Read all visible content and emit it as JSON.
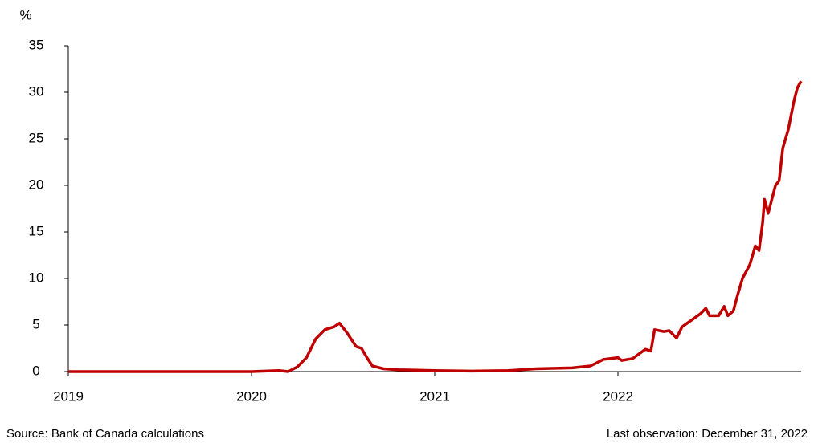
{
  "chart_data": {
    "type": "line",
    "y_unit": "%",
    "source": "Source: Bank of Canada calculations",
    "note": "Last observation: December 31, 2022",
    "xlim": [
      2019,
      2023
    ],
    "xticks": [
      2019,
      2020,
      2021,
      2022
    ],
    "ylim": [
      0,
      35
    ],
    "yticks": [
      0,
      5,
      10,
      15,
      20,
      25,
      30,
      35
    ],
    "grid": false,
    "x": [
      2019.0,
      2020.0,
      2020.15,
      2020.2,
      2020.25,
      2020.3,
      2020.35,
      2020.4,
      2020.45,
      2020.48,
      2020.52,
      2020.57,
      2020.6,
      2020.63,
      2020.66,
      2020.72,
      2020.8,
      2021.0,
      2021.2,
      2021.4,
      2021.55,
      2021.75,
      2021.85,
      2021.92,
      2022.0,
      2022.02,
      2022.08,
      2022.15,
      2022.18,
      2022.2,
      2022.25,
      2022.28,
      2022.32,
      2022.35,
      2022.4,
      2022.45,
      2022.48,
      2022.5,
      2022.55,
      2022.58,
      2022.6,
      2022.63,
      2022.65,
      2022.68,
      2022.72,
      2022.75,
      2022.77,
      2022.79,
      2022.8,
      2022.82,
      2022.84,
      2022.86,
      2022.88,
      2022.9,
      2022.93,
      2022.96,
      2022.98,
      2023.0
    ],
    "series": [
      {
        "color": "#c00000",
        "values": [
          0,
          0,
          0.1,
          0,
          0.5,
          1.5,
          3.5,
          4.5,
          4.8,
          5.2,
          4.2,
          2.7,
          2.5,
          1.5,
          0.6,
          0.3,
          0.2,
          0.1,
          0.05,
          0.1,
          0.3,
          0.4,
          0.6,
          1.3,
          1.5,
          1.2,
          1.4,
          2.4,
          2.2,
          4.5,
          4.3,
          4.4,
          3.6,
          4.8,
          5.5,
          6.2,
          6.8,
          6.0,
          6.0,
          7.0,
          6.0,
          6.5,
          8.0,
          10.0,
          11.5,
          13.5,
          13.0,
          16,
          18.5,
          17.0,
          18.5,
          20.0,
          20.5,
          24,
          26,
          29,
          30.5,
          31.2
        ]
      }
    ]
  }
}
